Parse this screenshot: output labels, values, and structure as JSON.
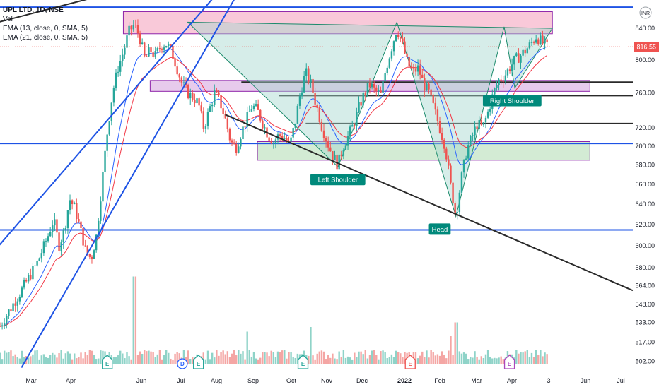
{
  "legend": {
    "symbol": "UPL LTD, 1D, NSE",
    "vol": "Vol",
    "ema1": "EMA (13, close, 0, SMA, 5)",
    "ema2": "EMA (21, close, 0, SMA, 5)"
  },
  "currency": "INR",
  "colors": {
    "up": "#26a69a",
    "down": "#ef5350",
    "ema_fast": "#2962ff",
    "ema_slow": "#f23645",
    "trend_blue": "#1e53e5",
    "trend_black": "#2a2a2a",
    "pattern_fill": "#a5d6cf",
    "label_bg": "#00897b",
    "supply_zone": "#f8bbd0",
    "demand_zone": "#c8e6c9",
    "purple_zone": "#e1bee7"
  },
  "chart_data": {
    "type": "candlestick",
    "title": "UPL LTD, 1D, NSE",
    "last_price": 816.55,
    "last_price_label": "816.55",
    "y_ticks": [
      "840.00",
      "800.00",
      "760.00",
      "720.00",
      "700.00",
      "680.00",
      "660.00",
      "640.00",
      "620.00",
      "600.00",
      "580.00",
      "564.00",
      "548.00",
      "533.00",
      "517.00",
      "502.00"
    ],
    "y_tick_values": [
      840,
      800,
      760,
      720,
      700,
      680,
      660,
      640,
      620,
      600,
      580,
      564,
      548,
      533,
      517,
      502
    ],
    "x_ticks": [
      "Mar",
      "Apr",
      "Jun",
      "Jul",
      "Aug",
      "Sep",
      "Oct",
      "Nov",
      "Dec",
      "2022",
      "Feb",
      "Mar",
      "Apr",
      "3",
      "Jun",
      "Jul"
    ],
    "y_scale": "log",
    "ylim": [
      500,
      870
    ],
    "price_path": [
      [
        0,
        530
      ],
      [
        4,
        560
      ],
      [
        7,
        585
      ],
      [
        9,
        610
      ],
      [
        10,
        625
      ],
      [
        11,
        600
      ],
      [
        12,
        615
      ],
      [
        13,
        645
      ],
      [
        14,
        635
      ],
      [
        16,
        595
      ],
      [
        17,
        588
      ],
      [
        18,
        610
      ],
      [
        19,
        660
      ],
      [
        20,
        715
      ],
      [
        21,
        760
      ],
      [
        22,
        790
      ],
      [
        23,
        810
      ],
      [
        24,
        835
      ],
      [
        25,
        845
      ],
      [
        26,
        830
      ],
      [
        27,
        800
      ],
      [
        28,
        812
      ],
      [
        29,
        805
      ],
      [
        30,
        818
      ],
      [
        31,
        820
      ],
      [
        32,
        810
      ],
      [
        33,
        790
      ],
      [
        34,
        770
      ],
      [
        35,
        760
      ],
      [
        36,
        755
      ],
      [
        37,
        748
      ],
      [
        38,
        720
      ],
      [
        39,
        740
      ],
      [
        40,
        760
      ],
      [
        41,
        750
      ],
      [
        42,
        730
      ],
      [
        43,
        705
      ],
      [
        44,
        698
      ],
      [
        45,
        715
      ],
      [
        46,
        730
      ],
      [
        47,
        745
      ],
      [
        48,
        740
      ],
      [
        49,
        725
      ],
      [
        50,
        712
      ],
      [
        51,
        705
      ],
      [
        52,
        712
      ],
      [
        53,
        710
      ],
      [
        54,
        700
      ],
      [
        55,
        725
      ],
      [
        56,
        760
      ],
      [
        57,
        785
      ],
      [
        58,
        770
      ],
      [
        59,
        745
      ],
      [
        60,
        722
      ],
      [
        61,
        705
      ],
      [
        62,
        690
      ],
      [
        63,
        680
      ],
      [
        64,
        700
      ],
      [
        65,
        712
      ],
      [
        66,
        725
      ],
      [
        67,
        745
      ],
      [
        68,
        760
      ],
      [
        69,
        770
      ],
      [
        70,
        762
      ],
      [
        71,
        758
      ],
      [
        72,
        790
      ],
      [
        73,
        815
      ],
      [
        74,
        840
      ],
      [
        75,
        820
      ],
      [
        76,
        795
      ],
      [
        77,
        785
      ],
      [
        78,
        790
      ],
      [
        79,
        770
      ],
      [
        80,
        760
      ],
      [
        81,
        740
      ],
      [
        82,
        720
      ],
      [
        83,
        700
      ],
      [
        84,
        660
      ],
      [
        85,
        628
      ],
      [
        86,
        665
      ],
      [
        87,
        695
      ],
      [
        88,
        710
      ],
      [
        89,
        725
      ],
      [
        90,
        720
      ],
      [
        91,
        738
      ],
      [
        92,
        760
      ],
      [
        93,
        775
      ],
      [
        94,
        780
      ],
      [
        95,
        790
      ],
      [
        96,
        800
      ],
      [
        97,
        805
      ],
      [
        98,
        812
      ],
      [
        99,
        820
      ],
      [
        100,
        830
      ],
      [
        101,
        822
      ],
      [
        102,
        816.55
      ]
    ],
    "x_span": [
      0,
      118
    ],
    "volume_spikes": [
      [
        25,
        0.95
      ],
      [
        46,
        0.35
      ],
      [
        58,
        0.4
      ],
      [
        84,
        0.3
      ],
      [
        85,
        0.45
      ]
    ],
    "zones": [
      {
        "kind": "supply",
        "x0": 23,
        "x1": 103,
        "y0": 833,
        "y1": 862
      },
      {
        "kind": "purple",
        "x0": 28,
        "x1": 110,
        "y0": 762,
        "y1": 775
      },
      {
        "kind": "demand",
        "x0": 48,
        "x1": 110,
        "y0": 685,
        "y1": 705
      }
    ],
    "hlines": [
      {
        "y": 868,
        "color": "blue"
      },
      {
        "y": 703,
        "color": "blue"
      },
      {
        "y": 615,
        "color": "blue"
      },
      {
        "y": 773,
        "color": "black",
        "x0": 45
      },
      {
        "y": 757,
        "color": "black",
        "x0": 52
      },
      {
        "y": 725,
        "color": "black",
        "x0": 57
      }
    ],
    "trendlines": [
      {
        "color": "blue",
        "x0": -2,
        "y0": 590,
        "x1": 52,
        "y1": 990
      },
      {
        "color": "blue",
        "x0": 4,
        "y0": 497,
        "x1": 52,
        "y1": 990
      },
      {
        "color": "black",
        "x0": -2,
        "y0": 845,
        "x1": 72,
        "y1": 990
      },
      {
        "color": "black",
        "x0": 42,
        "y0": 735,
        "x1": 118,
        "y1": 560
      }
    ],
    "pattern": [
      [
        35,
        848
      ],
      [
        63,
        678
      ],
      [
        74,
        848
      ],
      [
        85,
        628
      ],
      [
        94,
        842
      ],
      [
        96,
        766
      ],
      [
        103,
        840
      ]
    ],
    "annotations": [
      {
        "text": "Left Shoulder",
        "x": 63,
        "y": 678
      },
      {
        "text": "Head",
        "x": 82,
        "y": 628
      },
      {
        "text": "Right Shoulder",
        "x": 95.5,
        "y": 766
      }
    ],
    "events": [
      {
        "type": "E",
        "x": 20,
        "color": "green"
      },
      {
        "type": "D",
        "x": 34,
        "color": "blue"
      },
      {
        "type": "E",
        "x": 37,
        "color": "green"
      },
      {
        "type": "E",
        "x": 56.5,
        "color": "green"
      },
      {
        "type": "E",
        "x": 76.5,
        "color": "red"
      },
      {
        "type": "E",
        "x": 95,
        "color": "purple"
      }
    ]
  }
}
